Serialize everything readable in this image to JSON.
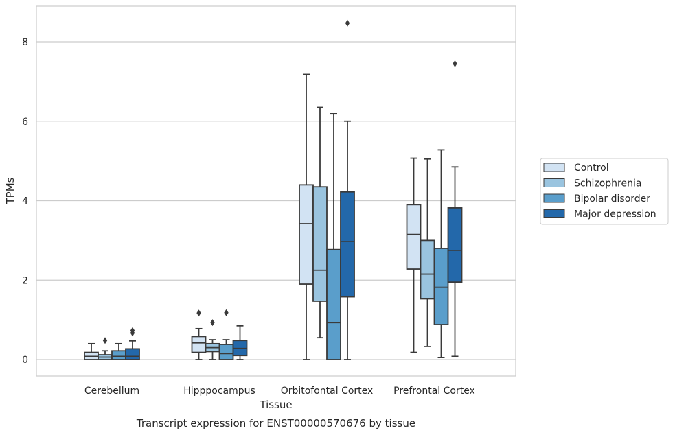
{
  "chart_data": {
    "type": "box",
    "title": "Transcript expression for ENST00000570676 by tissue",
    "xlabel": "Tissue",
    "ylabel": "TPMs",
    "ylim": [
      -0.4,
      8.9
    ],
    "yticks": [
      0,
      2,
      4,
      6,
      8
    ],
    "grid": "horizontal",
    "legend_position": "right",
    "categories": [
      "Cerebellum",
      "Hipppocampus",
      "Orbitofontal Cortex",
      "Prefrontal Cortex"
    ],
    "series": [
      {
        "name": "Control",
        "color": "#d2e3f3",
        "boxes": [
          {
            "whisker_low": 0.0,
            "q1": 0.0,
            "median": 0.08,
            "q3": 0.18,
            "whisker_high": 0.4,
            "outliers": []
          },
          {
            "whisker_low": 0.0,
            "q1": 0.18,
            "median": 0.42,
            "q3": 0.58,
            "whisker_high": 0.78,
            "outliers": [
              1.17
            ]
          },
          {
            "whisker_low": 0.0,
            "q1": 1.9,
            "median": 3.42,
            "q3": 4.4,
            "whisker_high": 7.18,
            "outliers": []
          },
          {
            "whisker_low": 0.18,
            "q1": 2.28,
            "median": 3.15,
            "q3": 3.9,
            "whisker_high": 5.07,
            "outliers": []
          }
        ]
      },
      {
        "name": "Schizophrenia",
        "color": "#9ac4df",
        "boxes": [
          {
            "whisker_low": 0.0,
            "q1": 0.0,
            "median": 0.06,
            "q3": 0.12,
            "whisker_high": 0.22,
            "outliers": [
              0.48
            ]
          },
          {
            "whisker_low": 0.0,
            "q1": 0.2,
            "median": 0.3,
            "q3": 0.4,
            "whisker_high": 0.5,
            "outliers": [
              0.93
            ]
          },
          {
            "whisker_low": 0.55,
            "q1": 1.47,
            "median": 2.25,
            "q3": 4.35,
            "whisker_high": 6.35,
            "outliers": []
          },
          {
            "whisker_low": 0.33,
            "q1": 1.53,
            "median": 2.15,
            "q3": 3.0,
            "whisker_high": 5.05,
            "outliers": []
          }
        ]
      },
      {
        "name": "Bipolar disorder",
        "color": "#5a9ecb",
        "boxes": [
          {
            "whisker_low": 0.0,
            "q1": 0.0,
            "median": 0.08,
            "q3": 0.22,
            "whisker_high": 0.4,
            "outliers": []
          },
          {
            "whisker_low": 0.0,
            "q1": 0.0,
            "median": 0.15,
            "q3": 0.38,
            "whisker_high": 0.5,
            "outliers": [
              1.18
            ]
          },
          {
            "whisker_low": 0.0,
            "q1": 0.0,
            "median": 0.93,
            "q3": 2.77,
            "whisker_high": 6.2,
            "outliers": []
          },
          {
            "whisker_low": 0.05,
            "q1": 0.88,
            "median": 1.82,
            "q3": 2.8,
            "whisker_high": 5.28,
            "outliers": []
          }
        ]
      },
      {
        "name": "Major depression",
        "color": "#2368aa",
        "boxes": [
          {
            "whisker_low": 0.0,
            "q1": 0.0,
            "median": 0.08,
            "q3": 0.27,
            "whisker_high": 0.47,
            "outliers": [
              0.67,
              0.73
            ]
          },
          {
            "whisker_low": 0.0,
            "q1": 0.1,
            "median": 0.28,
            "q3": 0.48,
            "whisker_high": 0.85,
            "outliers": []
          },
          {
            "whisker_low": 0.0,
            "q1": 1.58,
            "median": 2.97,
            "q3": 4.22,
            "whisker_high": 6.0,
            "outliers": [
              8.47
            ]
          },
          {
            "whisker_low": 0.08,
            "q1": 1.95,
            "median": 2.75,
            "q3": 3.82,
            "whisker_high": 4.85,
            "outliers": [
              7.45
            ]
          }
        ]
      }
    ]
  }
}
